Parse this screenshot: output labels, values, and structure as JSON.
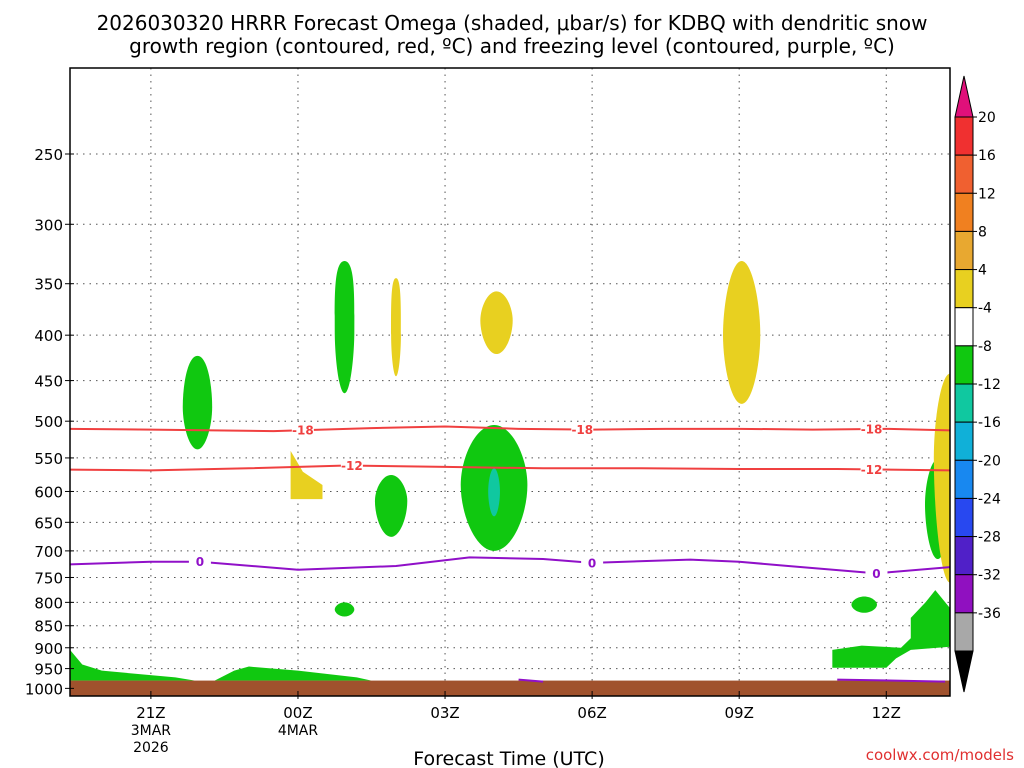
{
  "header": {
    "title_line1": "2026030320 HRRR Forecast Omega (shaded, μbar/s) for KDBQ with dendritic snow",
    "title_line2": "growth region (contoured, red, ºC) and freezing level (contoured, purple, ºC)"
  },
  "footer": {
    "credit": "coolwx.com/models",
    "credit_color": "#e03030"
  },
  "chart_data": {
    "type": "heatmap",
    "title": "2026030320 HRRR Forecast Omega (shaded, μbar/s) for KDBQ with dendritic snow growth region (contoured, red, ºC) and freezing level (contoured, purple, ºC)",
    "xlabel": "Forecast Time (UTC)",
    "ylabel": "",
    "x_unit": "hours since 2026-03-03 21Z",
    "xlim": [
      -1.65,
      16.3
    ],
    "ylim_hPa": [
      1020,
      200
    ],
    "y_scale": "log",
    "grid": true,
    "x_ticks": [
      {
        "x": 0,
        "lines": [
          "21Z",
          "3MAR",
          "2026"
        ]
      },
      {
        "x": 3,
        "lines": [
          "00Z",
          "4MAR"
        ]
      },
      {
        "x": 6,
        "lines": [
          "03Z"
        ]
      },
      {
        "x": 9,
        "lines": [
          "06Z"
        ]
      },
      {
        "x": 12,
        "lines": [
          "09Z"
        ]
      },
      {
        "x": 15,
        "lines": [
          "12Z"
        ]
      }
    ],
    "y_ticks": [
      250,
      300,
      350,
      400,
      450,
      500,
      550,
      600,
      650,
      700,
      750,
      800,
      850,
      900,
      950,
      1000
    ],
    "ground_pressure": 980,
    "ground_color": "#a0522d",
    "colorbar": {
      "labels": [
        20,
        16,
        12,
        8,
        4,
        -4,
        -8,
        -12,
        -16,
        -20,
        -24,
        -28,
        -32,
        -36
      ],
      "colors": [
        "#f03030",
        "#f06030",
        "#f08020",
        "#e8a830",
        "#e8d020",
        "#ffffff",
        "#10c810",
        "#10c8a0",
        "#10b0d8",
        "#1888f0",
        "#2848f0",
        "#5020c8",
        "#9010c0",
        "#a8a8a8"
      ],
      "top_arrow_color": "#e0107a",
      "bottom_arrow_color": "#000000"
    },
    "omega_features": [
      {
        "cx": 0.95,
        "p": 482,
        "rx": 0.3,
        "pTop": 422,
        "pBot": 538,
        "color": "#10c810",
        "tip": 1.2
      },
      {
        "cx": 3.95,
        "p": 395,
        "rx": 0.2,
        "pTop": 330,
        "pBot": 465,
        "color": "#10c810",
        "tip": 2.0
      },
      {
        "cx": 5.0,
        "p": 400,
        "rx": 0.1,
        "pTop": 345,
        "pBot": 445,
        "color": "#e8d020",
        "tip": 2.0
      },
      {
        "cx": 4.9,
        "p": 615,
        "rx": 0.33,
        "pTop": 575,
        "pBot": 675,
        "color": "#10c810",
        "tip": 1.0
      },
      {
        "cx": 7.05,
        "p": 385,
        "rx": 0.33,
        "pTop": 357,
        "pBot": 420,
        "color": "#e8d020",
        "tip": 1.0
      },
      {
        "cx": 7.0,
        "p": 590,
        "rx": 0.68,
        "pTop": 505,
        "pBot": 700,
        "color": "#10c810",
        "tip": 1.0
      },
      {
        "cx": 7.0,
        "p": 600,
        "rx": 0.12,
        "pTop": 565,
        "pBot": 640,
        "color": "#10c8a0",
        "tip": 1.0
      },
      {
        "cx": 12.05,
        "p": 400,
        "rx": 0.38,
        "pTop": 330,
        "pBot": 478,
        "color": "#e8d020",
        "tip": 1.0
      },
      {
        "cx": 3.95,
        "p": 815,
        "rx": 0.2,
        "pTop": 800,
        "pBot": 830,
        "color": "#10c810",
        "tip": 1.0
      },
      {
        "cx": 14.55,
        "p": 805,
        "rx": 0.26,
        "pTop": 788,
        "pBot": 822,
        "color": "#10c810",
        "tip": 1.0
      },
      {
        "cx": 16.05,
        "p": 620,
        "rx": 0.26,
        "pTop": 552,
        "pBot": 715,
        "color": "#10c810",
        "tip": 1.0
      },
      {
        "cx": 16.3,
        "p": 550,
        "rx": 0.33,
        "pTop": 442,
        "pBot": 760,
        "color": "#e8d020",
        "tip": 1.0
      }
    ],
    "omega_polygons": [
      {
        "color": "#e8d020",
        "points": [
          [
            2.85,
            540
          ],
          [
            3.1,
            570
          ],
          [
            3.5,
            590
          ],
          [
            3.5,
            612
          ],
          [
            2.85,
            612
          ]
        ]
      },
      {
        "color": "#10c810",
        "points": [
          [
            15.5,
            833
          ],
          [
            15.8,
            800
          ],
          [
            16.0,
            775
          ],
          [
            16.3,
            812
          ],
          [
            16.3,
            870
          ],
          [
            16.6,
            870
          ],
          [
            16.6,
            882
          ],
          [
            15.5,
            882
          ]
        ]
      },
      {
        "color": "#10c810",
        "points": [
          [
            13.9,
            905
          ],
          [
            14.5,
            895
          ],
          [
            15.3,
            900
          ],
          [
            15.5,
            878
          ],
          [
            16.6,
            878
          ],
          [
            16.6,
            895
          ],
          [
            15.5,
            905
          ],
          [
            15.2,
            925
          ],
          [
            15.0,
            948
          ],
          [
            13.9,
            948
          ]
        ]
      },
      {
        "color": "#10c810",
        "points": [
          [
            -1.65,
            905
          ],
          [
            -1.4,
            940
          ],
          [
            -1.0,
            955
          ],
          [
            0.5,
            972
          ],
          [
            0.9,
            980
          ],
          [
            -1.65,
            980
          ]
        ]
      },
      {
        "color": "#10c810",
        "points": [
          [
            1.3,
            980
          ],
          [
            1.7,
            955
          ],
          [
            2.0,
            945
          ],
          [
            3.0,
            955
          ],
          [
            4.2,
            972
          ],
          [
            4.5,
            980
          ]
        ]
      }
    ],
    "series": [
      {
        "name": "-18",
        "color": "#f04040",
        "x": [
          -1.65,
          0,
          2.5,
          4.5,
          6.0,
          7.5,
          9.0,
          10.5,
          12.0,
          13.5,
          15.0,
          16.3
        ],
        "y": [
          510,
          511,
          513,
          509,
          507,
          510,
          511,
          510,
          510,
          511,
          510,
          512
        ],
        "label_x": [
          3.1,
          8.8,
          14.7
        ]
      },
      {
        "name": "-12",
        "color": "#f04040",
        "x": [
          -1.65,
          0,
          2.0,
          4.0,
          6.0,
          8.0,
          10.0,
          12.0,
          14.0,
          16.3
        ],
        "y": [
          567,
          568,
          565,
          561,
          563,
          565,
          565,
          566,
          566,
          568
        ],
        "label_x": [
          4.1,
          14.7
        ]
      },
      {
        "name": "0",
        "color": "#9010c8",
        "x": [
          -1.65,
          0,
          1.0,
          3.0,
          5.0,
          6.5,
          8.0,
          9.0,
          11.0,
          12.0,
          13.0,
          14.8,
          16.3
        ],
        "y": [
          725,
          720,
          720,
          735,
          728,
          712,
          715,
          722,
          716,
          720,
          728,
          742,
          730
        ],
        "label_x": [
          1.0,
          9.0,
          14.8
        ]
      }
    ],
    "ground_contour_color": "#9010c8"
  }
}
